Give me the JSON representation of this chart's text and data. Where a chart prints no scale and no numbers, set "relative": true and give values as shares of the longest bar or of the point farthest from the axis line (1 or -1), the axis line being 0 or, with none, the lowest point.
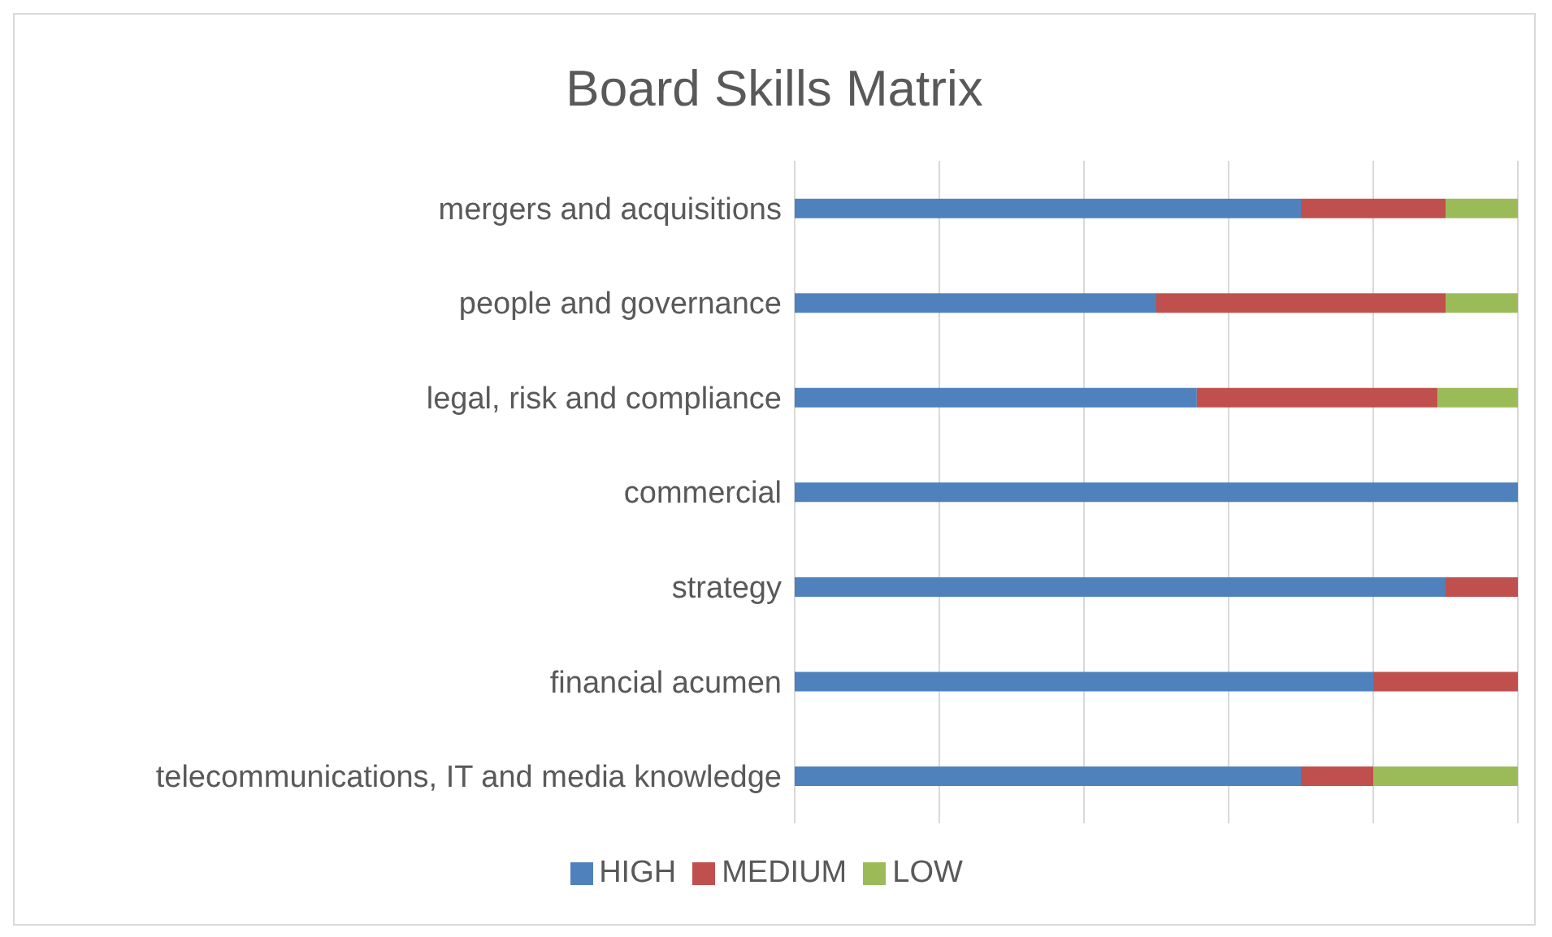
{
  "chart_data": {
    "type": "bar",
    "title": "Board Skills Matrix",
    "orientation": "horizontal",
    "stacked": true,
    "relative": true,
    "grid": "x",
    "legend": "bottom",
    "categories": [
      "mergers and acquisitions",
      "people and governance",
      "legal, risk and compliance",
      "commercial",
      "strategy",
      "financial acumen",
      "telecommunications, IT and media knowledge"
    ],
    "series": [
      {
        "name": "HIGH",
        "color": "#4f81bd",
        "values": [
          0.7,
          0.5,
          0.556,
          1,
          0.9,
          0.8,
          0.7
        ]
      },
      {
        "name": "MEDIUM",
        "color": "#c0504d",
        "values": [
          0.2,
          0.4,
          0.333,
          0,
          0.1,
          0.2,
          0.1
        ]
      },
      {
        "name": "LOW",
        "color": "#9bbb59",
        "values": [
          0.1,
          0.1,
          0.111,
          0,
          0,
          0,
          0.2
        ]
      }
    ]
  }
}
